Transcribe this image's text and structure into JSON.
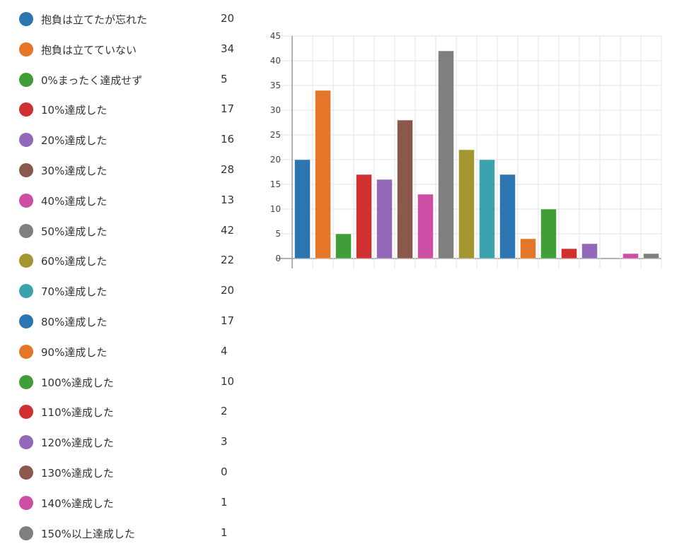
{
  "chart_data": {
    "type": "bar",
    "categories": [
      "抱負は立てたが忘れた",
      "抱負は立てていない",
      "0%まったく達成せず",
      "10%達成した",
      "20%達成した",
      "30%達成した",
      "40%達成した",
      "50%達成した",
      "60%達成した",
      "70%達成した",
      "80%達成した",
      "90%達成した",
      "100%達成した",
      "110%達成した",
      "120%達成した",
      "130%達成した",
      "140%達成した",
      "150%以上達成した"
    ],
    "values": [
      20,
      34,
      5,
      17,
      16,
      28,
      13,
      42,
      22,
      20,
      17,
      4,
      10,
      2,
      3,
      0,
      1,
      1
    ],
    "colors": [
      "#2b76b1",
      "#e57627",
      "#3f9e37",
      "#d03030",
      "#9368b8",
      "#8a584d",
      "#cc4fa5",
      "#7f7f7f",
      "#a39530",
      "#3ba2ae",
      "#2b76b1",
      "#e57627",
      "#3f9e37",
      "#d03030",
      "#9368b8",
      "#8a584d",
      "#cc4fa5",
      "#7f7f7f"
    ],
    "ylim": [
      0,
      45
    ],
    "yticks": [
      0,
      5,
      10,
      15,
      20,
      25,
      30,
      35,
      40,
      45
    ],
    "grid": true,
    "legend": "left",
    "xlabel": "",
    "ylabel": ""
  }
}
